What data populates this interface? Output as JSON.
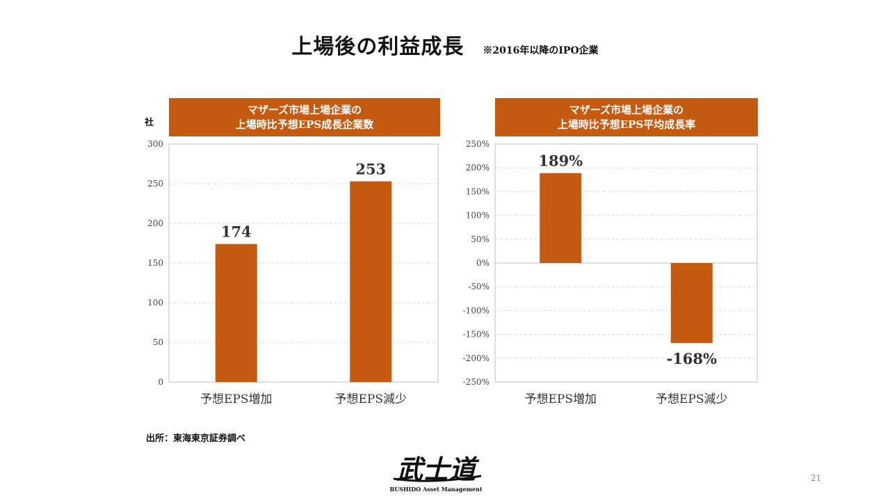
{
  "title": {
    "main": "上場後の利益成長",
    "note": "※2016年以降のIPO企業"
  },
  "chart_data": [
    {
      "type": "bar",
      "title": "マザーズ市場上場企業の",
      "subtitle": "上場時比予想EPS成長企業数",
      "ylabel": "社",
      "categories": [
        "予想EPS増加",
        "予想EPS減少"
      ],
      "values": [
        174,
        253
      ],
      "value_labels": [
        "174",
        "253"
      ],
      "ylim": [
        0,
        300
      ],
      "yticks": [
        0,
        50,
        100,
        150,
        200,
        250,
        300
      ],
      "ytick_labels": [
        "0",
        "50",
        "100",
        "150",
        "200",
        "250",
        "300"
      ],
      "grid": true,
      "color": "#c55a11"
    },
    {
      "type": "bar",
      "title": "マザーズ市場上場企業の",
      "subtitle": "上場時比予想EPS平均成長率",
      "categories": [
        "予想EPS増加",
        "予想EPS減少"
      ],
      "values": [
        189,
        -168
      ],
      "value_labels": [
        "189%",
        "-168%"
      ],
      "ylim": [
        -250,
        250
      ],
      "yticks": [
        -250,
        -200,
        -150,
        -100,
        -50,
        0,
        50,
        100,
        150,
        200,
        250
      ],
      "ytick_labels": [
        "-250%",
        "-200%",
        "-150%",
        "-100%",
        "-50%",
        "0%",
        "50%",
        "100%",
        "150%",
        "200%",
        "250%"
      ],
      "grid": true,
      "color": "#c55a11"
    }
  ],
  "footer": {
    "source": "出所：東海東京証券調べ",
    "page": "21",
    "logo_text": "BUSHIDO Asset Management"
  },
  "logo": {
    "mark": "武士道"
  }
}
